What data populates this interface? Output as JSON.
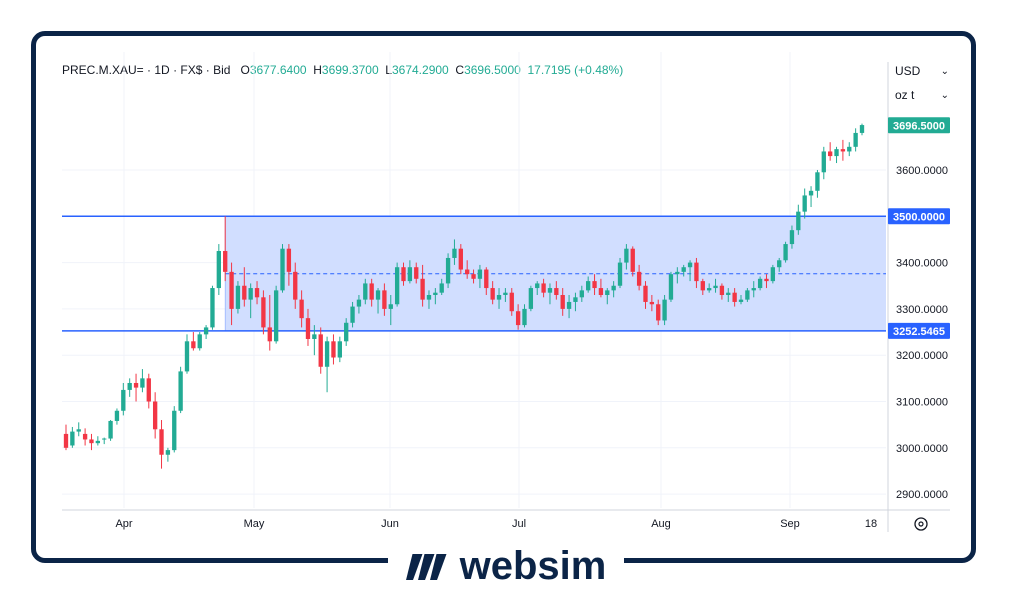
{
  "legend": {
    "symbol": "PREC.M.XAU=",
    "interval": "1D",
    "source": "FX$",
    "side": "Bid",
    "open_label": "O",
    "open": "3677.6400",
    "high_label": "H",
    "high": "3699.3700",
    "low_label": "L",
    "low": "3674.2900",
    "close_label": "C",
    "close": "3696.5000",
    "change": "17.7195 (+0.48%)"
  },
  "currency_select": "USD",
  "unit_select": "oz t",
  "brand": {
    "name": "websim",
    "color": "#0b2447"
  },
  "colors": {
    "up": "#22ab94",
    "down": "#f23645",
    "level": "#2962ff",
    "zone": "#cfdcff"
  },
  "price_tags": {
    "last": "3696.5000",
    "upper": "3500.0000",
    "lower": "3252.5465"
  },
  "chart_data": {
    "type": "candlestick",
    "x_labels": [
      "Apr",
      "May",
      "Jun",
      "Jul",
      "Aug",
      "Sep",
      "18"
    ],
    "y_ticks": [
      "2900.0000",
      "3000.0000",
      "3100.0000",
      "3200.0000",
      "3300.0000",
      "3400.0000",
      "3500.0000",
      "3600.0000"
    ],
    "ylim": [
      2870,
      3790
    ],
    "levels": {
      "upper": 3500,
      "lower": 3252.5465,
      "mid": 3376
    },
    "grid": true,
    "ohlc": [
      [
        3030,
        3050,
        2995,
        3000
      ],
      [
        3005,
        3045,
        3000,
        3035
      ],
      [
        3035,
        3055,
        3025,
        3040
      ],
      [
        3030,
        3042,
        3005,
        3018
      ],
      [
        3018,
        3030,
        2995,
        3010
      ],
      [
        3010,
        3025,
        3005,
        3015
      ],
      [
        3018,
        3022,
        3008,
        3020
      ],
      [
        3020,
        3060,
        3015,
        3058
      ],
      [
        3058,
        3085,
        3050,
        3080
      ],
      [
        3080,
        3140,
        3070,
        3125
      ],
      [
        3125,
        3150,
        3110,
        3140
      ],
      [
        3140,
        3160,
        3100,
        3130
      ],
      [
        3130,
        3170,
        3120,
        3150
      ],
      [
        3150,
        3160,
        3085,
        3100
      ],
      [
        3100,
        3120,
        3020,
        3040
      ],
      [
        3040,
        3060,
        2955,
        2985
      ],
      [
        2985,
        3000,
        2970,
        2995
      ],
      [
        2995,
        3090,
        2990,
        3080
      ],
      [
        3080,
        3175,
        3075,
        3165
      ],
      [
        3165,
        3245,
        3160,
        3230
      ],
      [
        3230,
        3250,
        3210,
        3215
      ],
      [
        3215,
        3250,
        3210,
        3245
      ],
      [
        3245,
        3265,
        3235,
        3260
      ],
      [
        3260,
        3350,
        3255,
        3345
      ],
      [
        3345,
        3440,
        3330,
        3425
      ],
      [
        3425,
        3500,
        3360,
        3380
      ],
      [
        3380,
        3400,
        3265,
        3300
      ],
      [
        3300,
        3360,
        3290,
        3350
      ],
      [
        3350,
        3390,
        3305,
        3320
      ],
      [
        3320,
        3355,
        3280,
        3345
      ],
      [
        3345,
        3360,
        3310,
        3325
      ],
      [
        3325,
        3340,
        3245,
        3260
      ],
      [
        3260,
        3330,
        3210,
        3230
      ],
      [
        3230,
        3350,
        3225,
        3340
      ],
      [
        3340,
        3440,
        3335,
        3430
      ],
      [
        3430,
        3440,
        3350,
        3380
      ],
      [
        3380,
        3400,
        3300,
        3320
      ],
      [
        3320,
        3340,
        3260,
        3280
      ],
      [
        3280,
        3300,
        3220,
        3235
      ],
      [
        3235,
        3265,
        3200,
        3245
      ],
      [
        3245,
        3260,
        3160,
        3175
      ],
      [
        3175,
        3240,
        3120,
        3230
      ],
      [
        3230,
        3245,
        3180,
        3195
      ],
      [
        3195,
        3240,
        3185,
        3230
      ],
      [
        3230,
        3280,
        3220,
        3270
      ],
      [
        3270,
        3315,
        3260,
        3305
      ],
      [
        3305,
        3330,
        3290,
        3320
      ],
      [
        3320,
        3365,
        3310,
        3355
      ],
      [
        3355,
        3365,
        3305,
        3320
      ],
      [
        3320,
        3345,
        3290,
        3340
      ],
      [
        3340,
        3355,
        3285,
        3300
      ],
      [
        3300,
        3330,
        3265,
        3310
      ],
      [
        3310,
        3400,
        3305,
        3390
      ],
      [
        3390,
        3400,
        3350,
        3360
      ],
      [
        3360,
        3405,
        3355,
        3390
      ],
      [
        3390,
        3400,
        3355,
        3365
      ],
      [
        3365,
        3395,
        3305,
        3320
      ],
      [
        3320,
        3340,
        3300,
        3330
      ],
      [
        3330,
        3345,
        3310,
        3335
      ],
      [
        3335,
        3365,
        3330,
        3355
      ],
      [
        3355,
        3420,
        3345,
        3410
      ],
      [
        3410,
        3450,
        3395,
        3430
      ],
      [
        3430,
        3440,
        3375,
        3385
      ],
      [
        3385,
        3405,
        3365,
        3375
      ],
      [
        3375,
        3385,
        3355,
        3365
      ],
      [
        3365,
        3395,
        3345,
        3385
      ],
      [
        3385,
        3390,
        3330,
        3345
      ],
      [
        3345,
        3360,
        3310,
        3320
      ],
      [
        3320,
        3345,
        3300,
        3330
      ],
      [
        3330,
        3345,
        3315,
        3335
      ],
      [
        3335,
        3345,
        3285,
        3295
      ],
      [
        3295,
        3310,
        3255,
        3265
      ],
      [
        3265,
        3310,
        3260,
        3300
      ],
      [
        3300,
        3350,
        3295,
        3345
      ],
      [
        3345,
        3360,
        3330,
        3355
      ],
      [
        3355,
        3365,
        3325,
        3335
      ],
      [
        3335,
        3355,
        3310,
        3345
      ],
      [
        3345,
        3360,
        3320,
        3330
      ],
      [
        3330,
        3345,
        3285,
        3300
      ],
      [
        3300,
        3330,
        3280,
        3315
      ],
      [
        3315,
        3335,
        3295,
        3325
      ],
      [
        3325,
        3350,
        3315,
        3340
      ],
      [
        3340,
        3370,
        3335,
        3360
      ],
      [
        3360,
        3375,
        3330,
        3345
      ],
      [
        3345,
        3365,
        3325,
        3330
      ],
      [
        3330,
        3345,
        3310,
        3340
      ],
      [
        3340,
        3360,
        3325,
        3350
      ],
      [
        3350,
        3410,
        3345,
        3400
      ],
      [
        3400,
        3440,
        3385,
        3430
      ],
      [
        3430,
        3435,
        3370,
        3380
      ],
      [
        3380,
        3395,
        3340,
        3350
      ],
      [
        3350,
        3360,
        3300,
        3315
      ],
      [
        3315,
        3330,
        3295,
        3310
      ],
      [
        3310,
        3320,
        3265,
        3275
      ],
      [
        3275,
        3330,
        3265,
        3320
      ],
      [
        3320,
        3380,
        3315,
        3375
      ],
      [
        3375,
        3390,
        3355,
        3380
      ],
      [
        3380,
        3395,
        3370,
        3390
      ],
      [
        3390,
        3405,
        3360,
        3400
      ],
      [
        3400,
        3410,
        3345,
        3360
      ],
      [
        3360,
        3365,
        3330,
        3340
      ],
      [
        3340,
        3355,
        3335,
        3345
      ],
      [
        3345,
        3365,
        3335,
        3350
      ],
      [
        3350,
        3355,
        3320,
        3330
      ],
      [
        3330,
        3345,
        3315,
        3335
      ],
      [
        3335,
        3345,
        3305,
        3315
      ],
      [
        3315,
        3330,
        3310,
        3320
      ],
      [
        3320,
        3345,
        3315,
        3340
      ],
      [
        3340,
        3360,
        3325,
        3345
      ],
      [
        3345,
        3370,
        3340,
        3365
      ],
      [
        3365,
        3375,
        3345,
        3360
      ],
      [
        3360,
        3395,
        3355,
        3390
      ],
      [
        3390,
        3410,
        3380,
        3405
      ],
      [
        3405,
        3445,
        3400,
        3440
      ],
      [
        3440,
        3480,
        3430,
        3470
      ],
      [
        3470,
        3525,
        3460,
        3510
      ],
      [
        3510,
        3560,
        3495,
        3545
      ],
      [
        3545,
        3565,
        3520,
        3555
      ],
      [
        3555,
        3600,
        3540,
        3595
      ],
      [
        3595,
        3650,
        3580,
        3640
      ],
      [
        3640,
        3660,
        3620,
        3630
      ],
      [
        3630,
        3650,
        3615,
        3645
      ],
      [
        3645,
        3665,
        3620,
        3640
      ],
      [
        3640,
        3660,
        3630,
        3650
      ],
      [
        3650,
        3690,
        3640,
        3680
      ],
      [
        3680,
        3700,
        3675,
        3697
      ]
    ]
  }
}
